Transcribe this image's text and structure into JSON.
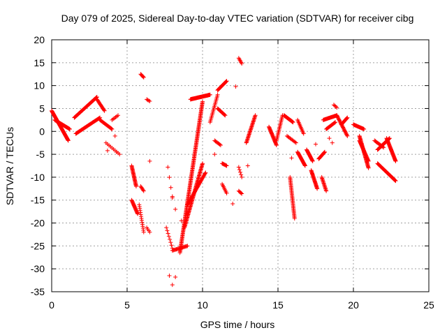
{
  "chart_data": {
    "type": "scatter",
    "title": "Day 079 of 2025, Sidereal Day-to-day VTEC variation (SDTVAR) for receiver cibg",
    "xlabel": "GPS time / hours",
    "ylabel": "SDTVAR / TECUs",
    "xlim": [
      0,
      25
    ],
    "ylim": [
      -35,
      20
    ],
    "xticks": [
      0,
      5,
      10,
      15,
      20,
      25
    ],
    "yticks": [
      -35,
      -30,
      -25,
      -20,
      -15,
      -10,
      -5,
      0,
      5,
      10,
      15,
      20
    ],
    "grid": true,
    "marker": "+",
    "color": "#ff0000",
    "tracks": [
      {
        "x0": 0.0,
        "x1": 1.1,
        "y0": 4.5,
        "y1": -2.0,
        "n": 60
      },
      {
        "x0": 0.2,
        "x1": 1.2,
        "y0": 2.5,
        "y1": 0.5,
        "n": 30
      },
      {
        "x0": 1.5,
        "x1": 3.0,
        "y0": 3.0,
        "y1": 7.5,
        "n": 50
      },
      {
        "x0": 1.6,
        "x1": 3.2,
        "y0": -0.5,
        "y1": 3.0,
        "n": 40
      },
      {
        "x0": 3.0,
        "x1": 3.5,
        "y0": 7.0,
        "y1": 4.5,
        "n": 15
      },
      {
        "x0": 3.2,
        "x1": 4.0,
        "y0": 2.5,
        "y1": 0.5,
        "n": 20
      },
      {
        "x0": 4.0,
        "x1": 4.4,
        "y0": 2.5,
        "y1": 3.5,
        "n": 6
      },
      {
        "x0": 3.6,
        "x1": 4.5,
        "y0": -2.5,
        "y1": -5.0,
        "n": 10
      },
      {
        "x0": 5.3,
        "x1": 5.6,
        "y0": -7.5,
        "y1": -12.0,
        "n": 25
      },
      {
        "x0": 5.3,
        "x1": 5.7,
        "y0": -15.0,
        "y1": -18.0,
        "n": 20
      },
      {
        "x0": 5.9,
        "x1": 6.1,
        "y0": -12.0,
        "y1": -13.0,
        "n": 6
      },
      {
        "x0": 5.8,
        "x1": 6.1,
        "y0": -16.0,
        "y1": -22.0,
        "n": 15
      },
      {
        "x0": 5.9,
        "x1": 6.1,
        "y0": 12.5,
        "y1": 11.8,
        "n": 6
      },
      {
        "x0": 6.3,
        "x1": 6.5,
        "y0": 7.0,
        "y1": 6.6,
        "n": 4
      },
      {
        "x0": 6.3,
        "x1": 6.5,
        "y0": -21.0,
        "y1": -22.0,
        "n": 4
      },
      {
        "x0": 7.7,
        "x1": 8.0,
        "y0": -7.8,
        "y1": -14.5,
        "n": 4
      },
      {
        "x0": 7.6,
        "x1": 8.0,
        "y0": -21.0,
        "y1": -25.5,
        "n": 8
      },
      {
        "x0": 8.0,
        "x1": 9.0,
        "y0": -26.0,
        "y1": -25.0,
        "n": 20
      },
      {
        "x0": 8.5,
        "x1": 10.0,
        "y0": -26.5,
        "y1": 6.5,
        "n": 150
      },
      {
        "x0": 8.8,
        "x1": 10.0,
        "y0": -21.0,
        "y1": -7.0,
        "n": 70
      },
      {
        "x0": 9.0,
        "x1": 10.2,
        "y0": -16.0,
        "y1": -9.0,
        "n": 40
      },
      {
        "x0": 9.2,
        "x1": 10.5,
        "y0": 7.0,
        "y1": 8.0,
        "n": 50
      },
      {
        "x0": 10.5,
        "x1": 11.0,
        "y0": 2.0,
        "y1": 8.0,
        "n": 20
      },
      {
        "x0": 11.0,
        "x1": 11.5,
        "y0": 5.0,
        "y1": 3.5,
        "n": 15
      },
      {
        "x0": 11.0,
        "x1": 11.6,
        "y0": 9.0,
        "y1": 11.0,
        "n": 20
      },
      {
        "x0": 10.8,
        "x1": 11.2,
        "y0": -2.0,
        "y1": -3.0,
        "n": 8
      },
      {
        "x0": 11.3,
        "x1": 11.6,
        "y0": -7.0,
        "y1": -7.5,
        "n": 8
      },
      {
        "x0": 11.3,
        "x1": 11.6,
        "y0": -11.5,
        "y1": -13.5,
        "n": 8
      },
      {
        "x0": 12.4,
        "x1": 12.6,
        "y0": 16.0,
        "y1": 14.8,
        "n": 6
      },
      {
        "x0": 12.4,
        "x1": 12.6,
        "y0": -7.8,
        "y1": -10.0,
        "n": 5
      },
      {
        "x0": 12.4,
        "x1": 12.6,
        "y0": -13.0,
        "y1": -13.6,
        "n": 5
      },
      {
        "x0": 12.9,
        "x1": 13.5,
        "y0": -2.5,
        "y1": 3.5,
        "n": 30
      },
      {
        "x0": 14.4,
        "x1": 14.9,
        "y0": 1.0,
        "y1": -3.0,
        "n": 25
      },
      {
        "x0": 14.9,
        "x1": 15.3,
        "y0": -2.0,
        "y1": 3.5,
        "n": 20
      },
      {
        "x0": 15.4,
        "x1": 16.0,
        "y0": 3.5,
        "y1": 2.0,
        "n": 25
      },
      {
        "x0": 15.6,
        "x1": 16.2,
        "y0": -1.0,
        "y1": -2.5,
        "n": 10
      },
      {
        "x0": 15.8,
        "x1": 16.1,
        "y0": -10.0,
        "y1": -19.0,
        "n": 35
      },
      {
        "x0": 16.3,
        "x1": 16.8,
        "y0": -4.5,
        "y1": -7.5,
        "n": 25
      },
      {
        "x0": 16.3,
        "x1": 16.7,
        "y0": 2.5,
        "y1": -0.5,
        "n": 12
      },
      {
        "x0": 16.9,
        "x1": 17.3,
        "y0": -4.0,
        "y1": -6.5,
        "n": 20
      },
      {
        "x0": 17.2,
        "x1": 17.6,
        "y0": -8.5,
        "y1": -12.5,
        "n": 25
      },
      {
        "x0": 17.7,
        "x1": 18.1,
        "y0": -6.0,
        "y1": -4.5,
        "n": 15
      },
      {
        "x0": 17.9,
        "x1": 18.2,
        "y0": -10.0,
        "y1": -13.0,
        "n": 15
      },
      {
        "x0": 18.0,
        "x1": 18.9,
        "y0": 2.5,
        "y1": 3.5,
        "n": 25
      },
      {
        "x0": 18.2,
        "x1": 18.8,
        "y0": 0.5,
        "y1": 2.0,
        "n": 15
      },
      {
        "x0": 18.7,
        "x1": 18.9,
        "y0": 5.8,
        "y1": 5.2,
        "n": 4
      },
      {
        "x0": 18.9,
        "x1": 19.6,
        "y0": 3.5,
        "y1": -1.0,
        "n": 25
      },
      {
        "x0": 19.2,
        "x1": 19.6,
        "y0": 1.5,
        "y1": 3.0,
        "n": 15
      },
      {
        "x0": 20.0,
        "x1": 20.7,
        "y0": 1.5,
        "y1": 0.5,
        "n": 20
      },
      {
        "x0": 20.4,
        "x1": 21.0,
        "y0": -1.0,
        "y1": -8.0,
        "n": 40
      },
      {
        "x0": 20.4,
        "x1": 21.0,
        "y0": -2.0,
        "y1": -6.5,
        "n": 30
      },
      {
        "x0": 21.6,
        "x1": 22.8,
        "y0": -7.0,
        "y1": -10.8,
        "n": 45
      },
      {
        "x0": 21.6,
        "x1": 22.4,
        "y0": -4.0,
        "y1": -1.5,
        "n": 30
      },
      {
        "x0": 22.2,
        "x1": 22.8,
        "y0": -1.5,
        "y1": -6.5,
        "n": 35
      },
      {
        "x0": 21.4,
        "x1": 22.0,
        "y0": -2.0,
        "y1": -3.5,
        "n": 12
      }
    ],
    "points": [
      {
        "x": 4.3,
        "y": -4.5
      },
      {
        "x": 4.2,
        "y": -1.0
      },
      {
        "x": 3.7,
        "y": -4.2
      },
      {
        "x": 6.5,
        "y": -6.5
      },
      {
        "x": 7.8,
        "y": -31.5
      },
      {
        "x": 8.2,
        "y": -31.8
      },
      {
        "x": 8.0,
        "y": -33.5
      },
      {
        "x": 8.2,
        "y": -17.0
      },
      {
        "x": 8.0,
        "y": -14.2
      },
      {
        "x": 8.6,
        "y": -19.5
      },
      {
        "x": 12.0,
        "y": -15.8
      },
      {
        "x": 13.0,
        "y": -7.5
      },
      {
        "x": 10.8,
        "y": -5.0
      },
      {
        "x": 12.2,
        "y": 9.8
      },
      {
        "x": 15.9,
        "y": -5.8
      },
      {
        "x": 18.6,
        "y": -2.5
      },
      {
        "x": 18.4,
        "y": -1.5
      },
      {
        "x": 17.5,
        "y": -2.8
      }
    ]
  }
}
